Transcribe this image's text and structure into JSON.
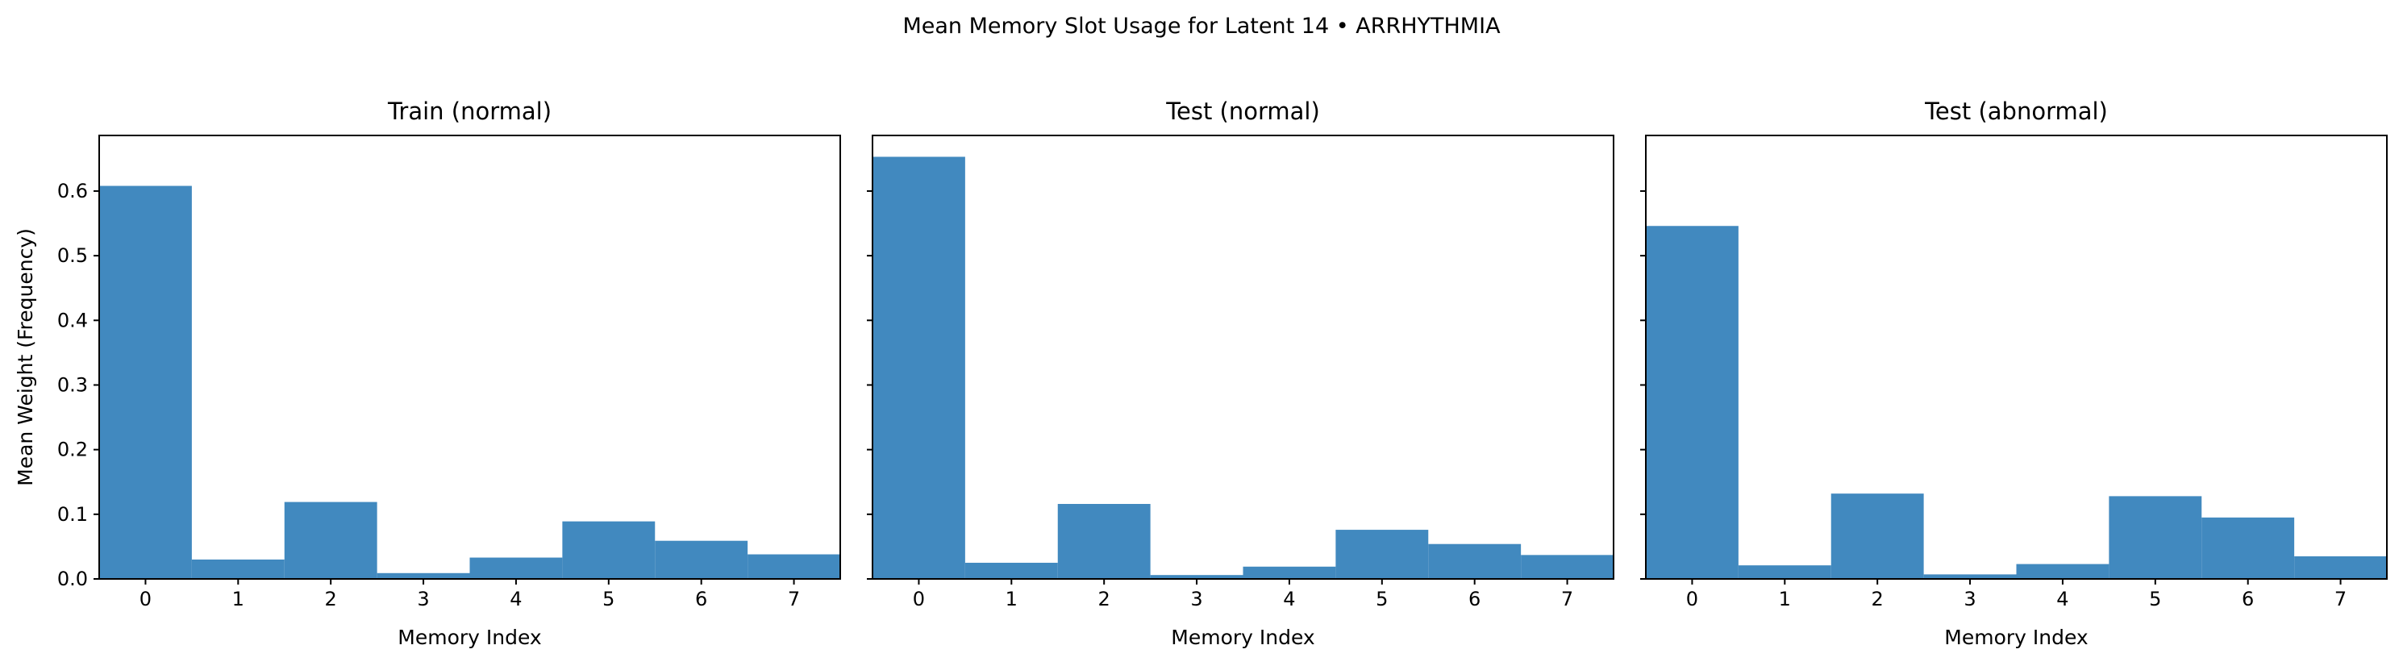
{
  "suptitle": "Mean Memory Slot Usage for Latent 14 • ARRHYTHMIA",
  "colors": {
    "bar": "#4189bf",
    "axis": "#000000",
    "background": "#ffffff"
  },
  "chart_data": [
    {
      "type": "bar",
      "title": "Train (normal)",
      "xlabel": "Memory Index",
      "ylabel": "Mean Weight (Frequency)",
      "categories": [
        "0",
        "1",
        "2",
        "3",
        "4",
        "5",
        "6",
        "7"
      ],
      "values": [
        0.608,
        0.03,
        0.119,
        0.009,
        0.033,
        0.089,
        0.059,
        0.038
      ],
      "ylim": [
        0,
        0.686
      ],
      "yticks": [
        0.0,
        0.1,
        0.2,
        0.3,
        0.4,
        0.5,
        0.6
      ],
      "ytick_labels": [
        "0.0",
        "0.1",
        "0.2",
        "0.3",
        "0.4",
        "0.5",
        "0.6"
      ],
      "grid": false,
      "legend": "none"
    },
    {
      "type": "bar",
      "title": "Test (normal)",
      "xlabel": "Memory Index",
      "ylabel": "",
      "categories": [
        "0",
        "1",
        "2",
        "3",
        "4",
        "5",
        "6",
        "7"
      ],
      "values": [
        0.653,
        0.025,
        0.116,
        0.006,
        0.019,
        0.076,
        0.054,
        0.037
      ],
      "ylim": [
        0,
        0.686
      ],
      "yticks": [
        0.0,
        0.1,
        0.2,
        0.3,
        0.4,
        0.5,
        0.6
      ],
      "ytick_labels": [],
      "grid": false,
      "legend": "none"
    },
    {
      "type": "bar",
      "title": "Test (abnormal)",
      "xlabel": "Memory Index",
      "ylabel": "",
      "categories": [
        "0",
        "1",
        "2",
        "3",
        "4",
        "5",
        "6",
        "7"
      ],
      "values": [
        0.546,
        0.021,
        0.132,
        0.007,
        0.023,
        0.128,
        0.095,
        0.035
      ],
      "ylim": [
        0,
        0.686
      ],
      "yticks": [
        0.0,
        0.1,
        0.2,
        0.3,
        0.4,
        0.5,
        0.6
      ],
      "ytick_labels": [],
      "grid": false,
      "legend": "none"
    }
  ]
}
